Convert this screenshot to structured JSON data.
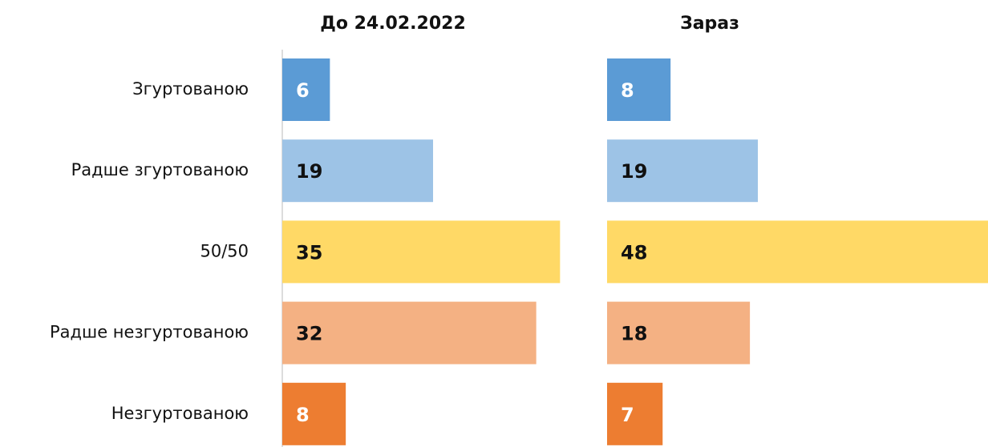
{
  "chart_data": {
    "type": "bar",
    "orientation": "horizontal",
    "categories": [
      "Згуртованою",
      "Радше згуртованою",
      "50/50",
      "Радше незгуртованою",
      "Незгуртованою"
    ],
    "colors": [
      "#5b9bd5",
      "#9dc3e6",
      "#ffd966",
      "#f4b183",
      "#ed7d31"
    ],
    "label_colors": [
      "#ffffff",
      "#111111",
      "#111111",
      "#111111",
      "#ffffff"
    ],
    "series": [
      {
        "name": "До 24.02.2022",
        "values": [
          6,
          19,
          35,
          32,
          8
        ]
      },
      {
        "name": "Зараз",
        "values": [
          8,
          19,
          48,
          18,
          7
        ]
      }
    ],
    "xlim": [
      0,
      48
    ]
  }
}
